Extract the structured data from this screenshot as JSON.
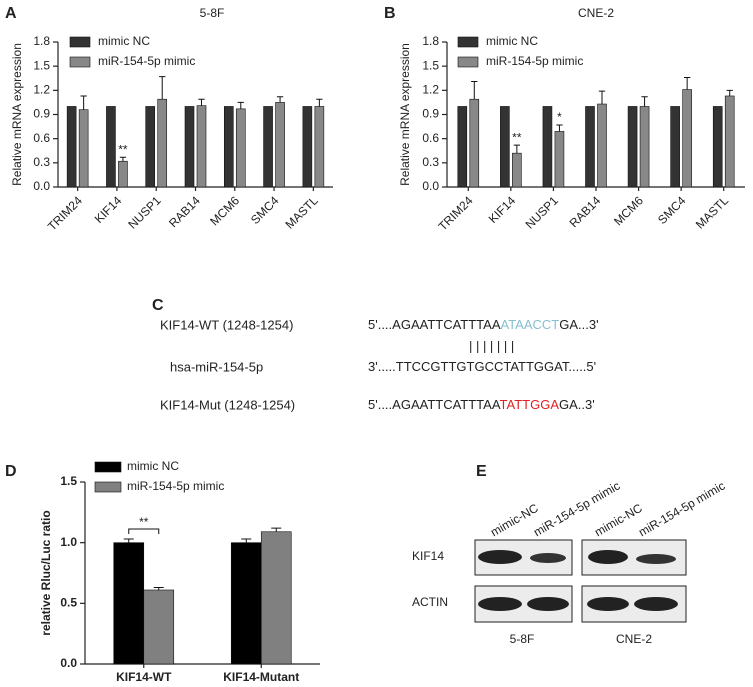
{
  "chart_data": [
    {
      "type": "bar",
      "panel": "A",
      "title": "5-8F",
      "y_label": "Relative mRNA expression",
      "categories": [
        "TRIM24",
        "KIF14",
        "NUSP1",
        "RAB14",
        "MCM6",
        "SMC4",
        "MASTL"
      ],
      "series": [
        {
          "name": "mimic NC",
          "color": "#333333",
          "values": [
            1,
            1,
            1,
            1,
            1,
            1,
            1
          ]
        },
        {
          "name": "miR-154-5p mimic",
          "color": "#888888",
          "values": [
            0.96,
            0.32,
            1.09,
            1.01,
            0.97,
            1.05,
            1.0
          ],
          "errors": [
            0.17,
            0.05,
            0.28,
            0.08,
            0.08,
            0.07,
            0.09
          ]
        }
      ],
      "ylim": [
        0,
        1.8
      ],
      "yticks": [
        {
          "value": 0,
          "label": "0.0"
        },
        0.3,
        0.6,
        0.9,
        1.2,
        1.5,
        1.8
      ],
      "legend": "top-left",
      "annotations": [
        {
          "category": "KIF14",
          "text": "**"
        }
      ]
    },
    {
      "type": "bar",
      "panel": "B",
      "title": "CNE-2",
      "y_label": "Relative mRNA expression",
      "categories": [
        "TRIM24",
        "KIF14",
        "NUSP1",
        "RAB14",
        "MCM6",
        "SMC4",
        "MASTL"
      ],
      "series": [
        {
          "name": "mimic NC",
          "color": "#333333",
          "values": [
            1,
            1,
            1,
            1,
            1,
            1,
            1
          ]
        },
        {
          "name": "miR-154-5p mimic",
          "color": "#888888",
          "values": [
            1.09,
            0.42,
            0.69,
            1.03,
            1.0,
            1.21,
            1.13
          ],
          "errors": [
            0.22,
            0.1,
            0.08,
            0.16,
            0.12,
            0.15,
            0.07
          ]
        }
      ],
      "ylim": [
        0,
        1.8
      ],
      "yticks": [
        {
          "value": 0,
          "label": "0.0"
        },
        0.3,
        0.6,
        0.9,
        1.2,
        1.5,
        1.8
      ],
      "legend": "top-left",
      "annotations": [
        {
          "category": "KIF14",
          "text": "**"
        },
        {
          "category": "NUSP1",
          "text": "*"
        }
      ]
    },
    {
      "type": "bar",
      "panel": "D",
      "y_label": "relative Rluc/Luc ratio",
      "categories": [
        "KIF14-WT",
        "KIF14-Mutant"
      ],
      "series": [
        {
          "name": "mimic NC",
          "color": "#000000",
          "values": [
            1.0,
            1.0
          ],
          "errors": [
            0.03,
            0.03
          ]
        },
        {
          "name": "miR-154-5p mimic",
          "color": "#808080",
          "values": [
            0.61,
            1.09
          ],
          "errors": [
            0.02,
            0.03
          ]
        }
      ],
      "ylim": [
        0,
        1.5
      ],
      "yticks": [
        {
          "value": 0,
          "label": "0.0"
        },
        0.5,
        {
          "value": 1,
          "label": "1.0"
        },
        1.5
      ],
      "legend": "top-left",
      "annotations": [
        {
          "category": "KIF14-WT",
          "text": "**",
          "bracket": true
        }
      ]
    }
  ],
  "sequence": {
    "panel": "C",
    "rows": [
      {
        "label": "KIF14-WT (1248-1254)",
        "parts": [
          "5'....AGAATTCATTTAA",
          "ATAACCT",
          "GA...3'"
        ]
      },
      {
        "label": "hsa-miR-154-5p",
        "parts": [
          "3'.....TTCCGTTGTGCCTATTGGAT.....5'"
        ]
      },
      {
        "label": "KIF14-Mut (1248-1254)",
        "parts": [
          "5'....AGAATTCATTTAA",
          "TATTGGA",
          "GA..3'"
        ]
      }
    ],
    "pairing": "|||||||"
  },
  "blot": {
    "panel": "E",
    "lanes": [
      "mimic-NC",
      "miR-154-5p mimic",
      "mimic-NC",
      "miR-154-5p mimic"
    ],
    "rows": [
      "KIF14",
      "ACTIN"
    ],
    "groups": [
      "5-8F",
      "CNE-2"
    ]
  }
}
